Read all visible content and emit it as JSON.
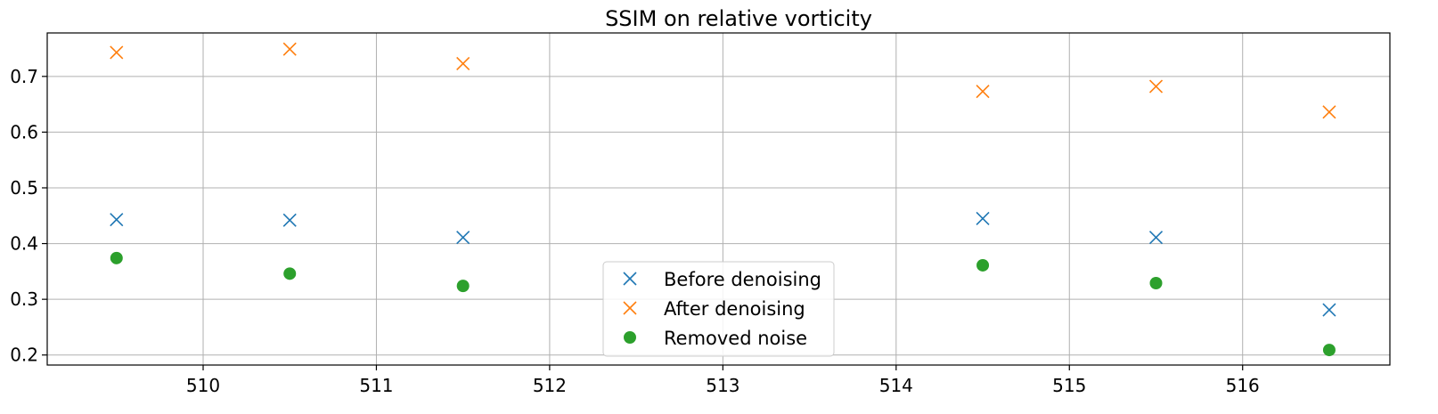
{
  "chart_data": {
    "type": "scatter",
    "title": "SSIM on relative vorticity",
    "xlabel": "",
    "ylabel": "",
    "xlim": [
      509.1,
      516.85
    ],
    "ylim": [
      0.182,
      0.778
    ],
    "xticks": [
      510,
      511,
      512,
      513,
      514,
      515,
      516
    ],
    "yticks": [
      0.2,
      0.3,
      0.4,
      0.5,
      0.6,
      0.7
    ],
    "ytick_labels": [
      "0.2",
      "0.3",
      "0.4",
      "0.5",
      "0.6",
      "0.7"
    ],
    "grid": true,
    "legend_position": "lower-center",
    "series": [
      {
        "name": "Before denoising",
        "marker": "x",
        "color": "#1f77b4",
        "x": [
          509.5,
          510.5,
          511.5,
          514.5,
          515.5,
          516.5
        ],
        "y": [
          0.443,
          0.442,
          0.411,
          0.445,
          0.411,
          0.281
        ]
      },
      {
        "name": "After denoising",
        "marker": "x",
        "color": "#ff7f0e",
        "x": [
          509.5,
          510.5,
          511.5,
          514.5,
          515.5,
          516.5
        ],
        "y": [
          0.743,
          0.749,
          0.723,
          0.673,
          0.682,
          0.636
        ]
      },
      {
        "name": "Removed noise",
        "marker": "o",
        "color": "#2ca02c",
        "x": [
          509.5,
          510.5,
          511.5,
          514.5,
          515.5,
          516.5
        ],
        "y": [
          0.374,
          0.346,
          0.324,
          0.361,
          0.329,
          0.209
        ]
      }
    ]
  }
}
